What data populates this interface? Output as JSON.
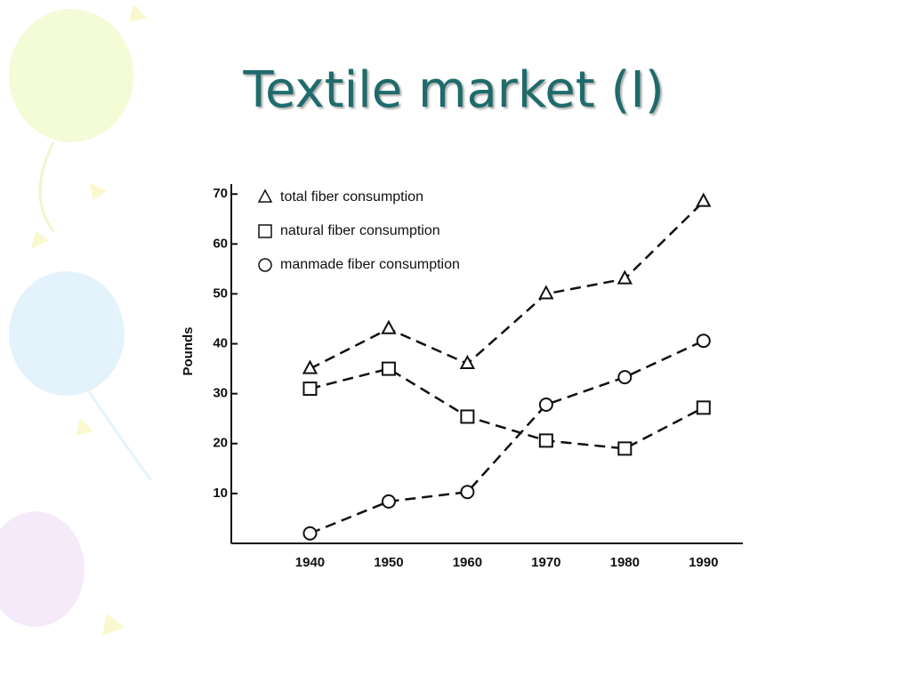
{
  "chart_data": {
    "type": "line",
    "title": "Textile market (I)",
    "y_label": "Pounds",
    "x": [
      1940,
      1950,
      1960,
      1970,
      1980,
      1990
    ],
    "series": [
      {
        "name": "total fiber consumption",
        "color": "#111111",
        "marker": "triangle",
        "values": [
          35,
          43,
          36,
          50,
          53,
          68.5
        ]
      },
      {
        "name": "natural fiber consumption",
        "color": "#111111",
        "marker": "square",
        "values": [
          31,
          35,
          25.4,
          20.6,
          19,
          27.2
        ]
      },
      {
        "name": "manmade fiber consumption",
        "color": "#111111",
        "marker": "circle",
        "values": [
          2,
          8.4,
          10.3,
          27.8,
          33.3,
          40.6
        ]
      }
    ],
    "xlim": [
      1930,
      1995
    ],
    "xticks": [
      1940,
      1950,
      1960,
      1970,
      1980,
      1990
    ],
    "ylim": [
      0,
      72
    ],
    "yticks": [
      10,
      20,
      30,
      40,
      50,
      60,
      70
    ],
    "line_style": "dashed",
    "legend": "upper left"
  }
}
